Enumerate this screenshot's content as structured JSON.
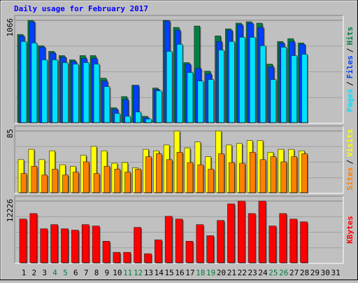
{
  "chart_data": [
    {
      "type": "bar",
      "title": "Daily usage for February 2017",
      "legend_separator": "/",
      "ylim": [
        0,
        1066
      ],
      "yticks": [
        1066
      ],
      "series": [
        {
          "name": "Hits",
          "color": "#008040",
          "values": [
            920,
            1066,
            803,
            745,
            701,
            657,
            701,
            701,
            467,
            161,
            277,
            394,
            73,
            365,
            1066,
            993,
            628,
            1007,
            540,
            905,
            978,
            1037,
            1051,
            1037,
            613,
            847,
            876,
            832,
            null,
            null,
            null
          ]
        },
        {
          "name": "Files",
          "color": "#0040ff",
          "values": [
            905,
            1051,
            788,
            730,
            686,
            642,
            672,
            672,
            438,
            146,
            248,
            394,
            58,
            350,
            1060,
            964,
            613,
            569,
            511,
            847,
            964,
            1022,
            1037,
            993,
            584,
            832,
            847,
            818,
            null,
            null,
            null
          ]
        },
        {
          "name": "Pages",
          "color": "#00e0ff",
          "values": [
            847,
            832,
            657,
            657,
            628,
            613,
            628,
            613,
            380,
            102,
            73,
            117,
            44,
            336,
            745,
            818,
            526,
            438,
            453,
            759,
            847,
            891,
            891,
            803,
            453,
            788,
            701,
            715,
            null,
            null,
            null
          ]
        }
      ]
    },
    {
      "type": "bar",
      "legend_separator": "/",
      "ylim": [
        0,
        85
      ],
      "yticks": [
        85
      ],
      "series": [
        {
          "name": "Visits",
          "color": "#ffff00",
          "values": [
            46,
            60,
            46,
            58,
            39,
            37,
            52,
            64,
            58,
            41,
            42,
            35,
            60,
            58,
            66,
            85,
            62,
            70,
            50,
            85,
            66,
            68,
            72,
            72,
            56,
            60,
            60,
            58,
            null,
            null,
            null
          ]
        },
        {
          "name": "Sites",
          "color": "#ff8000",
          "values": [
            27,
            37,
            25,
            33,
            25,
            29,
            43,
            27,
            37,
            33,
            29,
            33,
            50,
            54,
            46,
            56,
            42,
            39,
            33,
            54,
            42,
            41,
            56,
            46,
            50,
            43,
            50,
            54,
            null,
            null,
            null
          ]
        }
      ]
    },
    {
      "type": "bar",
      "ylim": [
        0,
        12226
      ],
      "yticks": [
        12226
      ],
      "categories": [
        "1",
        "2",
        "3",
        "4",
        "5",
        "6",
        "7",
        "8",
        "9",
        "10",
        "11",
        "12",
        "13",
        "14",
        "15",
        "16",
        "17",
        "18",
        "19",
        "20",
        "21",
        "22",
        "23",
        "24",
        "25",
        "26",
        "27",
        "28",
        "29",
        "30",
        "31"
      ],
      "category_colors": [
        "#000000",
        "#000000",
        "#000000",
        "#008040",
        "#008040",
        "#000000",
        "#000000",
        "#000000",
        "#000000",
        "#000000",
        "#008040",
        "#008040",
        "#000000",
        "#000000",
        "#000000",
        "#000000",
        "#000000",
        "#008040",
        "#008040",
        "#000000",
        "#000000",
        "#000000",
        "#000000",
        "#000000",
        "#008040",
        "#008040",
        "#000000",
        "#000000",
        "#000000",
        "#000000",
        "#000000"
      ],
      "series": [
        {
          "name": "KBytes",
          "color": "#ff0000",
          "values": [
            8694,
            9780,
            6792,
            7607,
            6792,
            6520,
            7607,
            7335,
            4347,
            2173,
            2173,
            7064,
            1902,
            4619,
            9237,
            8694,
            4347,
            7607,
            5434,
            8422,
            11683,
            12226,
            9780,
            12226,
            7335,
            9780,
            8694,
            8151,
            null,
            null,
            null
          ]
        }
      ]
    }
  ]
}
